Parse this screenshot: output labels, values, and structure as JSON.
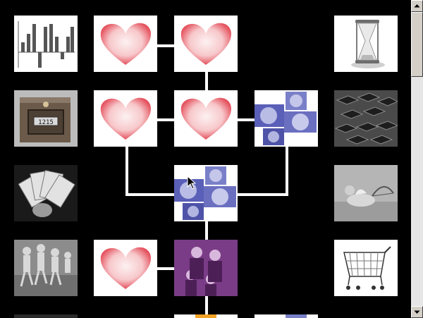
{
  "page": {
    "title": "",
    "colors": {
      "background": "#000000",
      "connector": "#ffffff",
      "heart": "#e8606a",
      "faces": "#5a5fb8",
      "family": "#7a3c86"
    }
  },
  "tiles": [
    {
      "id": "bar-chart",
      "icon": "bar-chart-icon"
    },
    {
      "id": "heart-1",
      "icon": "heart-icon"
    },
    {
      "id": "heart-2",
      "icon": "heart-icon"
    },
    {
      "id": "hourglass",
      "icon": "hourglass-icon"
    },
    {
      "id": "safe",
      "icon": "safe-icon",
      "label": "1215"
    },
    {
      "id": "heart-3",
      "icon": "heart-icon"
    },
    {
      "id": "heart-4",
      "icon": "heart-icon"
    },
    {
      "id": "faces-1",
      "icon": "faces-collage-icon"
    },
    {
      "id": "graduates",
      "icon": "graduation-caps-icon"
    },
    {
      "id": "money",
      "icon": "money-fan-icon"
    },
    {
      "id": "faces-2",
      "icon": "faces-collage-icon"
    },
    {
      "id": "cupid",
      "icon": "cupid-icon"
    },
    {
      "id": "kids",
      "icon": "running-kids-icon"
    },
    {
      "id": "heart-5",
      "icon": "heart-icon"
    },
    {
      "id": "family",
      "icon": "family-portrait-icon"
    },
    {
      "id": "cart",
      "icon": "shopping-cart-icon"
    }
  ],
  "scrollbar": {
    "up": "scroll-up-icon",
    "down": "scroll-down-icon"
  }
}
